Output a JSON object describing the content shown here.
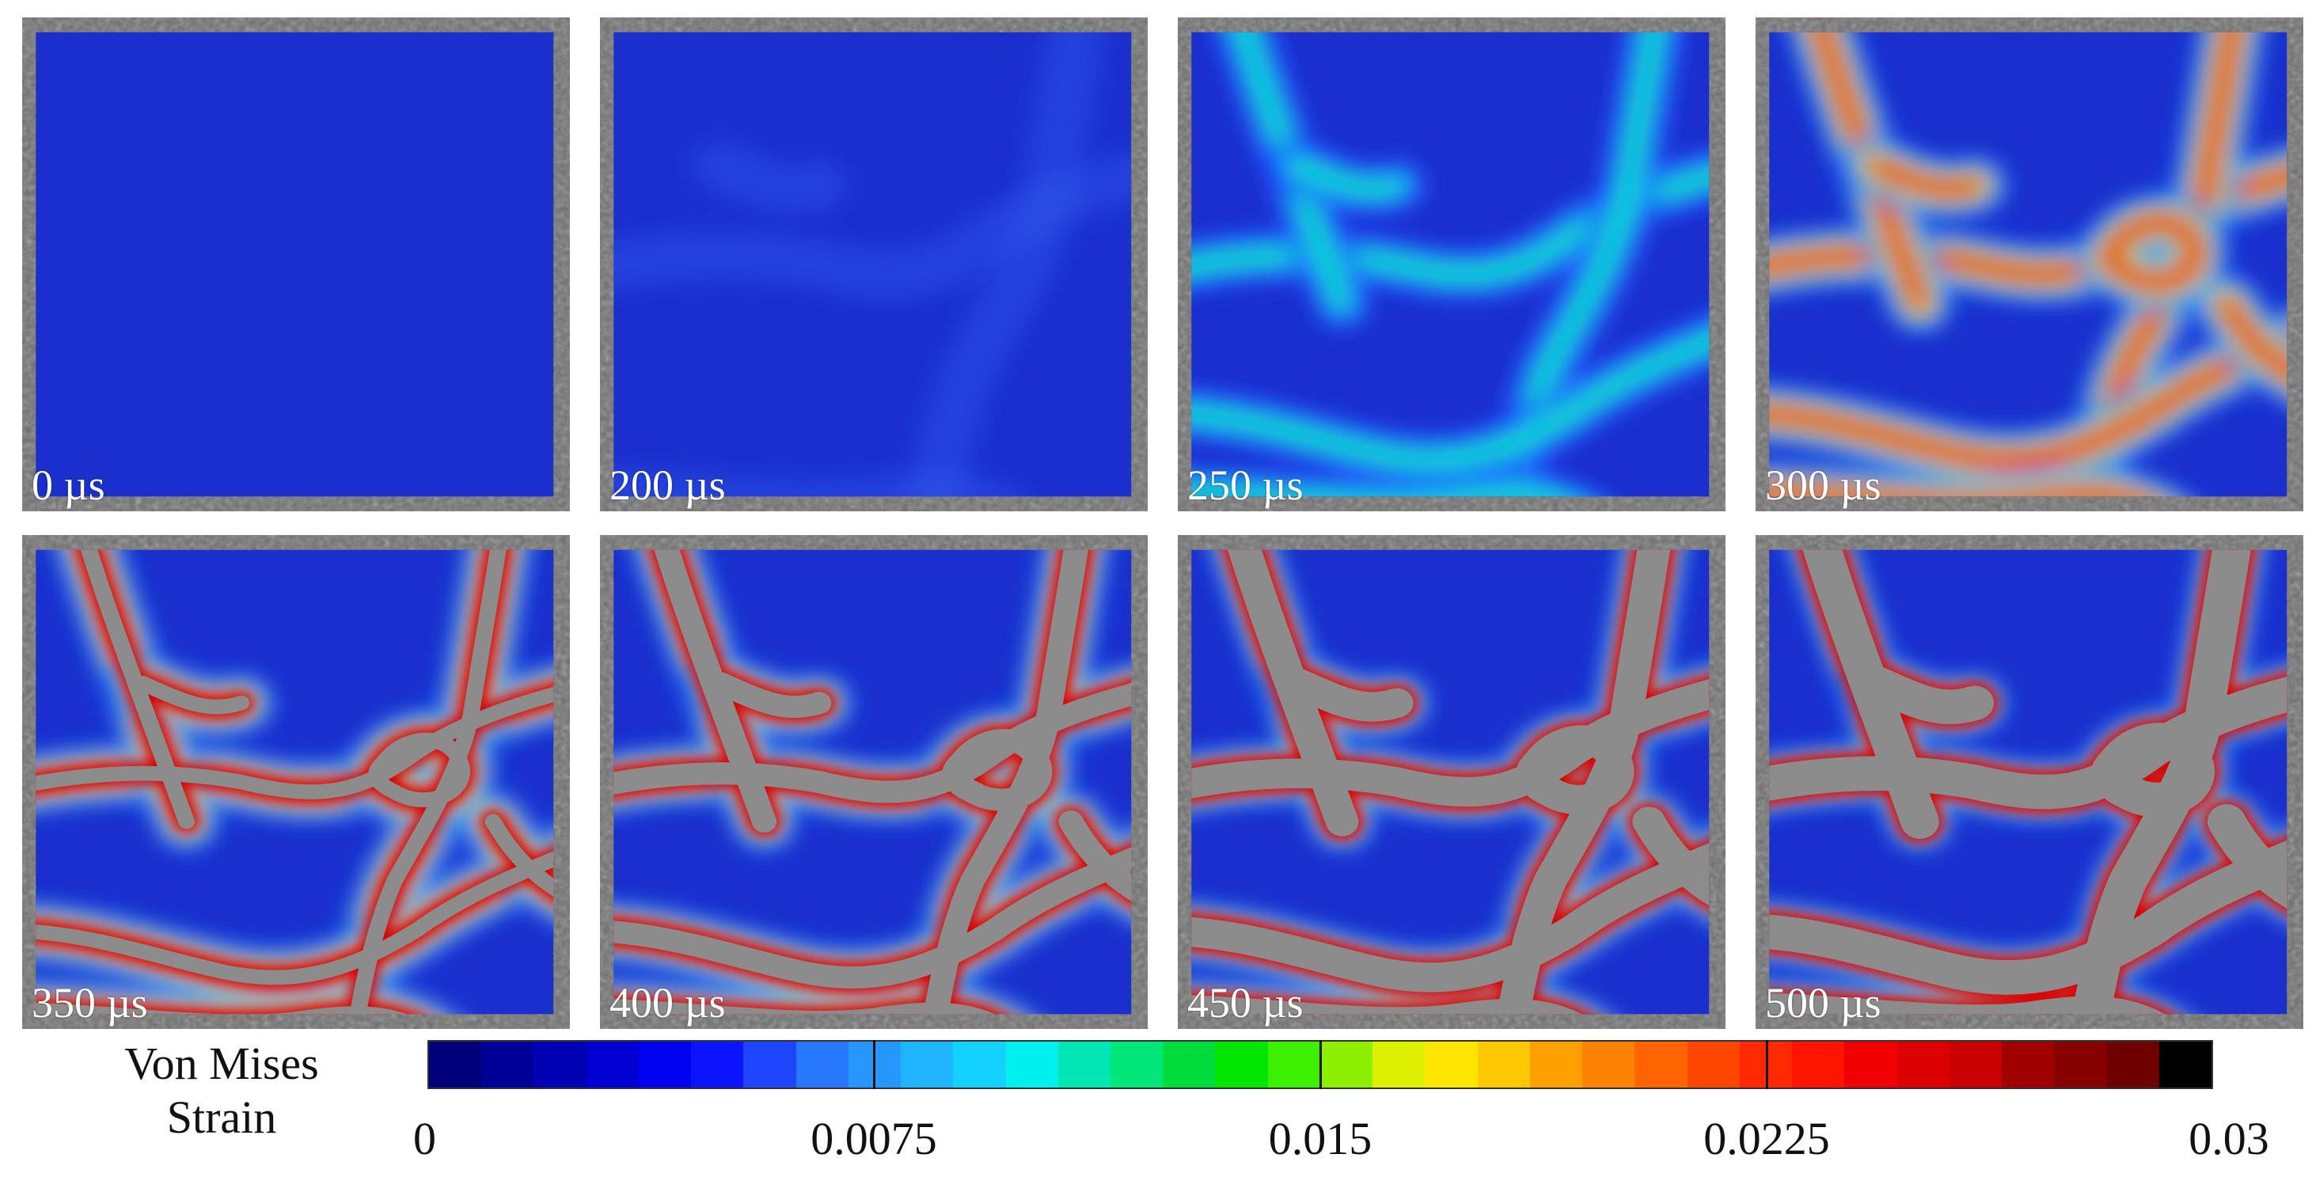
{
  "panels": [
    {
      "label": "0 µs"
    },
    {
      "label": "200 µs"
    },
    {
      "label": "250 µs"
    },
    {
      "label": "300 µs"
    },
    {
      "label": "350 µs"
    },
    {
      "label": "400 µs"
    },
    {
      "label": "450 µs"
    },
    {
      "label": "500 µs"
    }
  ],
  "colorbar": {
    "title_line1": "Von Mises",
    "title_line2": "Strain",
    "min": 0,
    "max": 0.03,
    "ticks": [
      {
        "value": 0,
        "label": "0"
      },
      {
        "value": 0.0075,
        "label": "0.0075"
      },
      {
        "value": 0.015,
        "label": "0.015"
      },
      {
        "value": 0.0225,
        "label": "0.0225"
      },
      {
        "value": 0.03,
        "label": "0.03"
      }
    ],
    "colors": [
      "#00007a",
      "#000096",
      "#0000b4",
      "#0000d2",
      "#0000f0",
      "#0a14ff",
      "#1e46ff",
      "#2878ff",
      "#2896ff",
      "#1eb4ff",
      "#14d2ff",
      "#00f0f0",
      "#00e6b4",
      "#00e678",
      "#00dc3c",
      "#00e600",
      "#3cf000",
      "#8cf000",
      "#dcf000",
      "#ffe600",
      "#ffc800",
      "#ffa000",
      "#ff8200",
      "#ff6400",
      "#ff4600",
      "#ff2800",
      "#ff1400",
      "#f00000",
      "#dc0000",
      "#c80000",
      "#a00000",
      "#870000",
      "#6e0000",
      "#000000"
    ],
    "background_color": "#1a2fcc",
    "cracked_color": "#8c8c8c"
  }
}
